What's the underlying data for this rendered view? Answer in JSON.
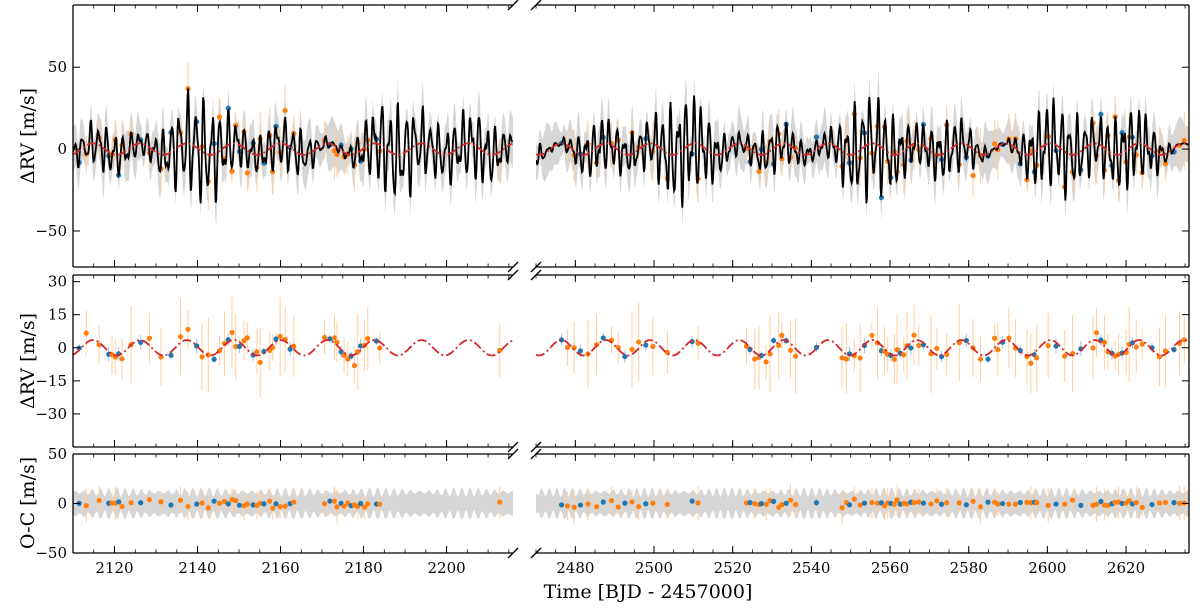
{
  "chart_data": {
    "type": "scatter",
    "description_x_label": "Time [BJD - 2457000]",
    "x_axis_label": "Time [BJD - 2457000]",
    "segments": [
      {
        "name": "left",
        "xlim": [
          2110,
          2216
        ],
        "ticks": [
          2120,
          2140,
          2160,
          2180,
          2200
        ]
      },
      {
        "name": "right",
        "xlim": [
          2470,
          2636
        ],
        "ticks": [
          2480,
          2500,
          2520,
          2540,
          2560,
          2580,
          2600,
          2620
        ]
      }
    ],
    "panels": [
      {
        "name": "rv-full-model",
        "ylabel": "ΔRV [m/s]",
        "ylim": [
          -72,
          88
        ],
        "yticks": [
          -50,
          0,
          50
        ],
        "ytick_labels": [
          "−50",
          "0",
          "50"
        ],
        "series": [
          {
            "name": "instrument-1",
            "color": "#1f77b4",
            "kind": "points"
          },
          {
            "name": "instrument-2",
            "color": "#ff7f0e",
            "kind": "points"
          },
          {
            "name": "planet+activity model",
            "color": "#000000",
            "kind": "line"
          },
          {
            "name": "model uncertainty band",
            "color": "#d6d6d6",
            "kind": "band"
          },
          {
            "name": "planetary signal",
            "color": "#d62728",
            "kind": "dashdot"
          }
        ]
      },
      {
        "name": "rv-planet-only",
        "ylabel": "ΔRV [m/s]",
        "ylim": [
          -45,
          33
        ],
        "yticks": [
          -30,
          -15,
          0,
          15,
          30
        ],
        "ytick_labels": [
          "−30",
          "−15",
          "0",
          "15",
          "30"
        ],
        "series": [
          {
            "name": "instrument-1",
            "color": "#1f77b4",
            "kind": "points"
          },
          {
            "name": "instrument-2",
            "color": "#ff7f0e",
            "kind": "points"
          },
          {
            "name": "planetary signal",
            "color": "#d62728",
            "kind": "dashdot"
          }
        ]
      },
      {
        "name": "residuals",
        "ylabel": "O-C [m/s]",
        "ylim": [
          -50,
          50
        ],
        "yticks": [
          -50,
          0,
          50
        ],
        "ytick_labels": [
          "−50",
          "0",
          "50"
        ],
        "series": [
          {
            "name": "instrument-1",
            "color": "#1f77b4",
            "kind": "points"
          },
          {
            "name": "instrument-2",
            "color": "#ff7f0e",
            "kind": "points"
          },
          {
            "name": "residual scatter band",
            "color": "#d6d6d6",
            "kind": "band"
          }
        ]
      }
    ],
    "observation_times": {
      "left": [
        2111.5,
        2113.2,
        2116.3,
        2118.6,
        2119.4,
        2120.2,
        2121.0,
        2121.8,
        2124.0,
        2126.3,
        2128.4,
        2131.2,
        2133.6,
        2135.9,
        2137.7,
        2139.8,
        2141.1,
        2142.6,
        2144.0,
        2145.3,
        2146.5,
        2147.4,
        2148.3,
        2149.2,
        2150.1,
        2151.2,
        2152.0,
        2153.4,
        2154.3,
        2155.1,
        2156.0,
        2157.4,
        2158.1,
        2158.9,
        2159.9,
        2161.1,
        2162.3,
        2163.2,
        2170.6,
        2171.9,
        2173.0,
        2173.6,
        2174.6,
        2175.3,
        2176.2,
        2177.0,
        2177.8,
        2178.6,
        2179.3,
        2180.2,
        2181.0,
        2183.1,
        2183.9,
        2212.8
      ],
      "right": [
        2476.5,
        2478.0,
        2479.7,
        2481.3,
        2483.2,
        2485.4,
        2487.1,
        2489.2,
        2490.9,
        2492.6,
        2494.4,
        2496.1,
        2497.9,
        2499.7,
        2503.4,
        2509.7,
        2511.2,
        2523.5,
        2524.4,
        2525.6,
        2526.7,
        2527.3,
        2528.5,
        2529.5,
        2530.4,
        2531.7,
        2532.5,
        2533.6,
        2534.7,
        2536.0,
        2541.3,
        2547.8,
        2548.9,
        2549.7,
        2550.9,
        2552.4,
        2553.5,
        2555.4,
        2556.8,
        2557.8,
        2558.6,
        2559.4,
        2560.2,
        2561.1,
        2561.8,
        2562.6,
        2563.5,
        2564.3,
        2565.3,
        2566.1,
        2567.3,
        2568.5,
        2570.4,
        2571.9,
        2573.1,
        2574.4,
        2577.6,
        2579.4,
        2581.1,
        2583.0,
        2584.9,
        2586.6,
        2587.4,
        2588.6,
        2590.2,
        2591.9,
        2593.1,
        2594.8,
        2595.8,
        2596.7,
        2597.3,
        2600.2,
        2602.2,
        2604.4,
        2606.4,
        2608.5,
        2611.6,
        2612.5,
        2613.6,
        2614.5,
        2615.4,
        2616.4,
        2617.2,
        2618.1,
        2619.0,
        2620.0,
        2620.8,
        2621.6,
        2622.6,
        2624.1,
        2626.6,
        2628.5,
        2630.0,
        2632.2,
        2633.6,
        2634.8
      ]
    }
  }
}
